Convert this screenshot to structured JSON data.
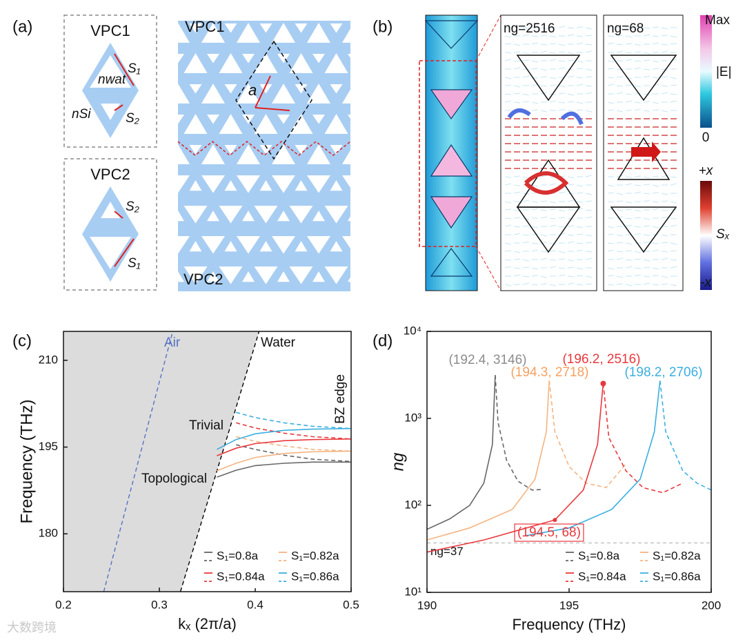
{
  "panel_a": {
    "label": "(a)",
    "vpc1": "VPC1",
    "vpc2": "VPC2",
    "s1": "S₁",
    "s2": "S₂",
    "n_wat": "nwat",
    "n_si": "nSi",
    "lattice_vpc1": "VPC1",
    "lattice_vpc2": "VPC2",
    "lattice_constant": "a"
  },
  "panel_b": {
    "label": "(b)",
    "ng_left": "ng=2516",
    "ng_right": "ng=68",
    "e_bar": {
      "max": "Max",
      "title": "|E|",
      "min": "0"
    },
    "s_bar": {
      "max": "+x",
      "title": "Sₓ",
      "min": "-x"
    }
  },
  "watermark": "大数跨境",
  "chart_data": [
    {
      "type": "line",
      "panel_label": "(c)",
      "xlabel": "kₓ (2π/a)",
      "ylabel": "Frequency (THz)",
      "x": [
        0.36,
        0.38,
        0.4,
        0.43,
        0.46,
        0.5
      ],
      "series": [
        {
          "name": "S₁=0.8a",
          "color": "#666666",
          "dash": "solid",
          "values": [
            189.8,
            191.0,
            191.8,
            192.2,
            192.4,
            192.4
          ]
        },
        {
          "name": "S₁=0.8a",
          "color": "#666666",
          "dash": "dashed",
          "values": [
            null,
            195.4,
            194.6,
            193.6,
            192.9,
            192.5
          ]
        },
        {
          "name": "S₁=0.82a",
          "color": "#f5b380",
          "dash": "solid",
          "values": [
            190.9,
            192.2,
            193.2,
            193.9,
            194.2,
            194.3
          ]
        },
        {
          "name": "S₁=0.82a",
          "color": "#f5b380",
          "dash": "dashed",
          "values": [
            null,
            196.8,
            196.0,
            195.2,
            194.6,
            194.3
          ]
        },
        {
          "name": "S₁=0.84a",
          "color": "#e8383d",
          "dash": "solid",
          "values": [
            193.5,
            194.8,
            195.6,
            196.1,
            196.3,
            196.4
          ]
        },
        {
          "name": "S₁=0.84a",
          "color": "#e8383d",
          "dash": "dashed",
          "values": [
            null,
            199.2,
            198.3,
            197.4,
            196.8,
            196.4
          ]
        },
        {
          "name": "S₁=0.86a",
          "color": "#3aaee0",
          "dash": "solid",
          "values": [
            194.6,
            196.3,
            197.3,
            197.9,
            198.1,
            198.2
          ]
        },
        {
          "name": "S₁=0.86a",
          "color": "#3aaee0",
          "dash": "dashed",
          "values": [
            null,
            201.0,
            200.1,
            199.2,
            198.6,
            198.2
          ]
        }
      ],
      "light_lines": [
        {
          "name": "Air",
          "color": "#5470c6",
          "x": [
            0.242,
            0.314
          ],
          "values": [
            170,
            215
          ]
        },
        {
          "name": "Water",
          "color": "#000000",
          "x": [
            0.322,
            0.404
          ],
          "values": [
            170,
            215
          ]
        }
      ],
      "annotations": [
        "Trivial",
        "Topological",
        "BZ edge"
      ],
      "xlim": [
        0.2,
        0.5
      ],
      "ylim": [
        170,
        215
      ],
      "xticks": [
        0.2,
        0.3,
        0.4,
        0.5
      ],
      "yticks": [
        180,
        195,
        210
      ]
    },
    {
      "type": "line",
      "panel_label": "(d)",
      "xlabel": "Frequency (THz)",
      "ylabel": "ng",
      "log_y": true,
      "series": [
        {
          "name": "S₁=0.8a",
          "color": "#666666",
          "dash": "solid",
          "x": [
            190,
            190.8,
            191.5,
            192.0,
            192.3,
            192.4
          ],
          "values": [
            53,
            70,
            100,
            180,
            500,
            3146
          ]
        },
        {
          "name": "S₁=0.8a",
          "color": "#666666",
          "dash": "dashed",
          "x": [
            192.4,
            192.5,
            192.8,
            193.2,
            193.7,
            194.0
          ],
          "values": [
            3146,
            900,
            330,
            190,
            150,
            152
          ]
        },
        {
          "name": "S₁=0.82a",
          "color": "#f5b380",
          "dash": "solid",
          "x": [
            190,
            191.5,
            193,
            193.8,
            194.2,
            194.3
          ],
          "values": [
            40,
            55,
            90,
            200,
            700,
            2718
          ]
        },
        {
          "name": "S₁=0.82a",
          "color": "#f5b380",
          "dash": "dashed",
          "x": [
            194.3,
            194.5,
            195,
            195.6,
            196.3,
            197.0
          ],
          "values": [
            2718,
            700,
            280,
            180,
            160,
            300
          ]
        },
        {
          "name": "S₁=0.84a",
          "color": "#e8383d",
          "dash": "solid",
          "x": [
            190,
            192,
            194.5,
            195.5,
            196.0,
            196.2
          ],
          "values": [
            29,
            40,
            68,
            150,
            500,
            2516
          ]
        },
        {
          "name": "S₁=0.84a",
          "color": "#e8383d",
          "dash": "dashed",
          "x": [
            196.2,
            196.4,
            197,
            197.6,
            198.3,
            199
          ],
          "values": [
            2516,
            600,
            250,
            160,
            140,
            180
          ]
        },
        {
          "name": "S₁=0.86a",
          "color": "#3aaee0",
          "dash": "solid",
          "x": [
            193.5,
            195,
            196.5,
            197.5,
            198.0,
            198.2
          ],
          "values": [
            45,
            55,
            90,
            200,
            700,
            2706
          ]
        },
        {
          "name": "S₁=0.86a",
          "color": "#3aaee0",
          "dash": "dashed",
          "x": [
            198.2,
            198.4,
            199,
            199.5,
            200
          ],
          "values": [
            2706,
            700,
            250,
            180,
            150
          ]
        }
      ],
      "reference_line": {
        "value": 37,
        "label": "ng=37"
      },
      "markers": [
        {
          "x": 196.2,
          "y": 2516,
          "color": "#e8383d"
        },
        {
          "x": 194.5,
          "y": 68,
          "color": "#e8383d"
        }
      ],
      "annotations": [
        {
          "label": "(192.4, 3146)",
          "color": "#8c8c8c"
        },
        {
          "label": "(194.3, 2718)",
          "color": "#f5a060"
        },
        {
          "label": "(196.2, 2516)",
          "color": "#e8383d"
        },
        {
          "label": "(198.2, 2706)",
          "color": "#3aaee0"
        },
        {
          "label": "(194.5, 68)",
          "color": "#e8383d"
        }
      ],
      "xlim": [
        190,
        200
      ],
      "ylim": [
        10,
        10000
      ],
      "xticks": [
        190,
        195,
        200
      ],
      "yticks": [
        {
          "value": 10,
          "label": "10¹"
        },
        {
          "value": 100,
          "label": "10²"
        },
        {
          "value": 1000,
          "label": "10³"
        },
        {
          "value": 10000,
          "label": "10⁴"
        }
      ]
    }
  ]
}
